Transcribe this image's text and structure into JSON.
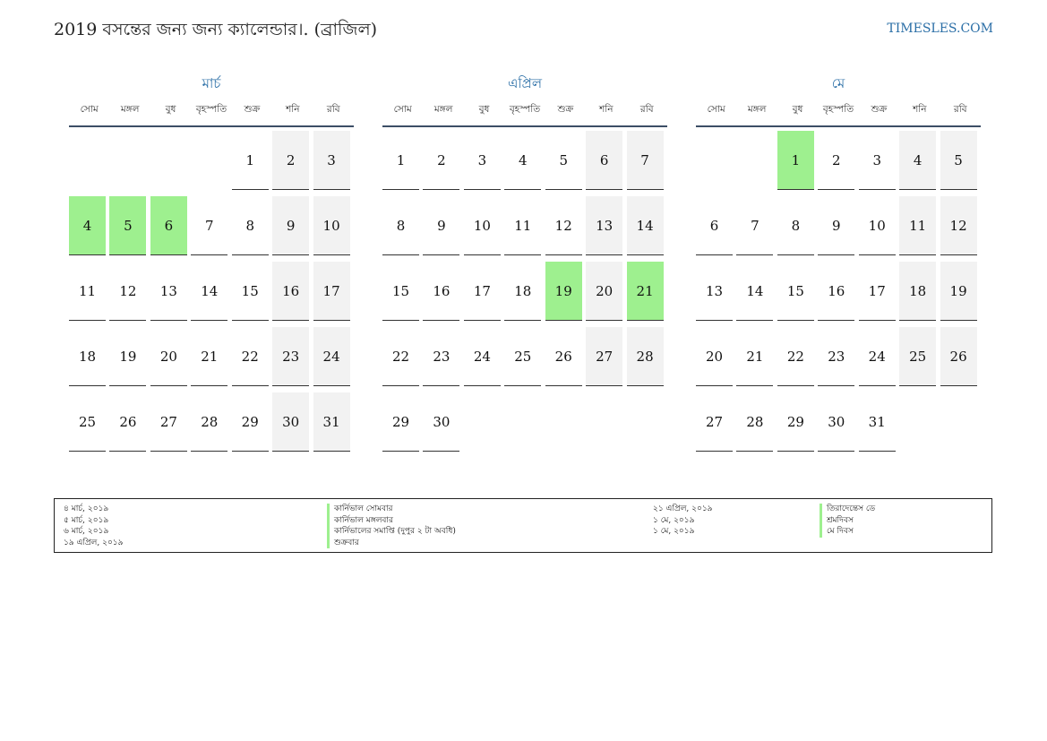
{
  "header": {
    "title": "2019 বসন্তের জন্য জন্য ক্যালেন্ডার।. (ব্রাজিল)",
    "site": "TIMESLES.COM"
  },
  "weekdays": [
    "সোম",
    "মঙ্গল",
    "বুধ",
    "বৃহস্পতি",
    "শুক্র",
    "শনি",
    "রবি"
  ],
  "colors": {
    "holiday": "#9ef08f",
    "weekend": "#f2f2f2",
    "accent": "#2a6ea6"
  },
  "months": [
    {
      "name": "মার্চ",
      "start_weekday": 4,
      "days": 31,
      "holidays": [
        4,
        5,
        6
      ]
    },
    {
      "name": "এপ্রিল",
      "start_weekday": 0,
      "days": 30,
      "holidays": [
        19,
        21
      ]
    },
    {
      "name": "মে",
      "start_weekday": 2,
      "days": 31,
      "holidays": [
        1
      ]
    }
  ],
  "legend": {
    "left": [
      {
        "date": "৪ মার্চ, ২০১৯",
        "name": "কার্নিভাল সোমবার"
      },
      {
        "date": "৫ মার্চ, ২০১৯",
        "name": "কার্নিভাল মঙ্গলবার"
      },
      {
        "date": "৬ মার্চ, ২০১৯",
        "name": "কার্নিভালের সমাপ্তি (দুপুর ২ টা অবধি)"
      },
      {
        "date": "১৯ এপ্রিল, ২০১৯",
        "name": "শুক্রবার"
      }
    ],
    "right": [
      {
        "date": "২১ এপ্রিল, ২০১৯",
        "name": "তিরাদেন্তেস ডে"
      },
      {
        "date": "১ মে, ২০১৯",
        "name": "শ্রমদিবস"
      },
      {
        "date": "১ মে, ২০১৯",
        "name": "মে দিবস"
      }
    ]
  }
}
